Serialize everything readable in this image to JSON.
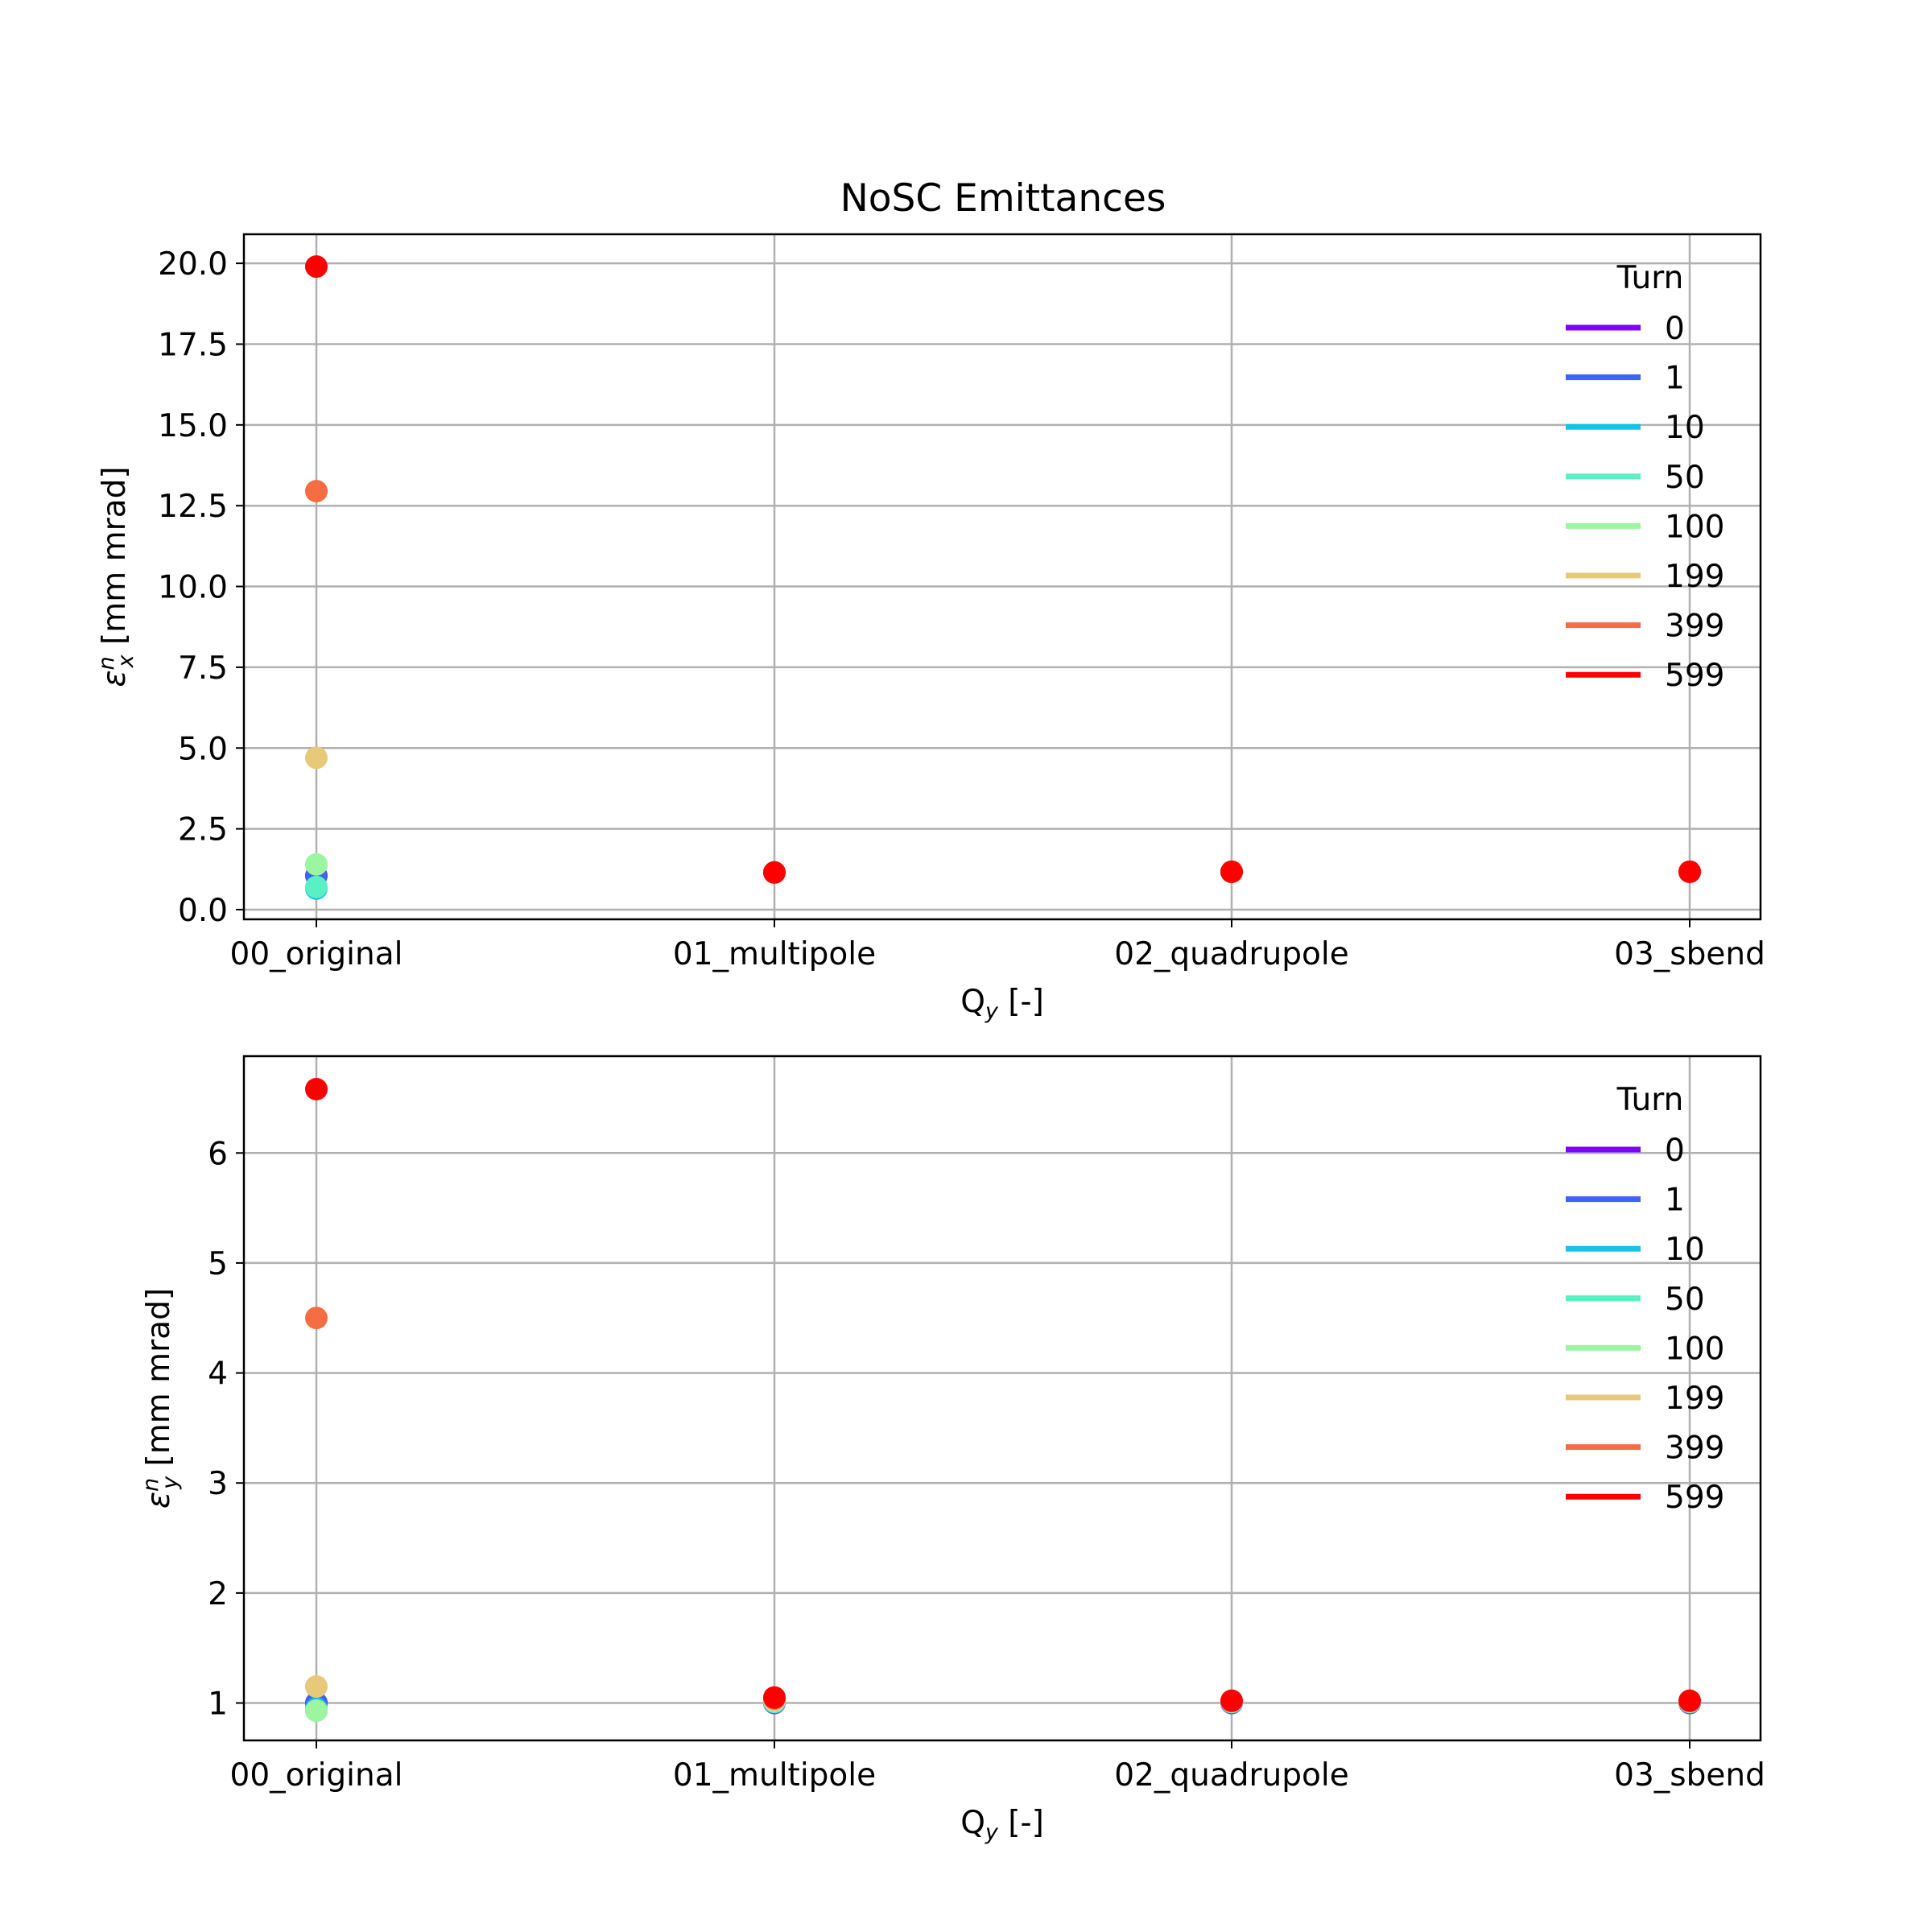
{
  "figure": {
    "title": "NoSC Emittances",
    "background": "#ffffff"
  },
  "chart_data": [
    {
      "type": "scatter",
      "title": "NoSC Emittances",
      "xlabel": {
        "main": "Q",
        "sub": "y",
        "suffix": " [-]"
      },
      "ylabel": {
        "symbol": "ε",
        "sup": "n",
        "sub": "x",
        "suffix": " [mm mrad]"
      },
      "categories": [
        "00_original",
        "01_multipole",
        "02_quadrupole",
        "03_sbend"
      ],
      "ylim": [
        -0.3,
        20.9
      ],
      "yticks": [
        0.0,
        2.5,
        5.0,
        7.5,
        10.0,
        12.5,
        15.0,
        17.5,
        20.0
      ],
      "ytick_labels": [
        "0.0",
        "2.5",
        "5.0",
        "7.5",
        "10.0",
        "12.5",
        "15.0",
        "17.5",
        "20.0"
      ],
      "grid": true,
      "legend": {
        "title": "Turn",
        "position": "top-right"
      },
      "series": [
        {
          "name": "0",
          "color": "#8000ff",
          "values": [
            1.05,
            1.15,
            1.17,
            1.17
          ]
        },
        {
          "name": "1",
          "color": "#3f62f8",
          "values": [
            1.05,
            1.15,
            1.17,
            1.17
          ]
        },
        {
          "name": "10",
          "color": "#19c1e4",
          "values": [
            0.65,
            1.15,
            1.17,
            1.17
          ]
        },
        {
          "name": "50",
          "color": "#59f0c4",
          "values": [
            0.7,
            1.15,
            1.17,
            1.17
          ]
        },
        {
          "name": "100",
          "color": "#9cf5a0",
          "values": [
            1.4,
            1.15,
            1.17,
            1.17
          ]
        },
        {
          "name": "199",
          "color": "#e8c97a",
          "values": [
            4.7,
            1.15,
            1.17,
            1.17
          ]
        },
        {
          "name": "399",
          "color": "#f46d43",
          "values": [
            12.95,
            1.15,
            1.17,
            1.17
          ]
        },
        {
          "name": "599",
          "color": "#ff0000",
          "values": [
            19.9,
            1.15,
            1.17,
            1.17
          ]
        }
      ]
    },
    {
      "type": "scatter",
      "title": "",
      "xlabel": {
        "main": "Q",
        "sub": "y",
        "suffix": " [-]"
      },
      "ylabel": {
        "symbol": "ε",
        "sup": "n",
        "sub": "y",
        "suffix": " [mm mrad]"
      },
      "categories": [
        "00_original",
        "01_multipole",
        "02_quadrupole",
        "03_sbend"
      ],
      "ylim": [
        0.66,
        6.88
      ],
      "yticks": [
        1,
        2,
        3,
        4,
        5,
        6
      ],
      "ytick_labels": [
        "1",
        "2",
        "3",
        "4",
        "5",
        "6"
      ],
      "grid": true,
      "legend": {
        "title": "Turn",
        "position": "top-right"
      },
      "series": [
        {
          "name": "0",
          "color": "#8000ff",
          "values": [
            1.0,
            1.0,
            1.0,
            1.0
          ]
        },
        {
          "name": "1",
          "color": "#3f62f8",
          "values": [
            1.0,
            1.0,
            1.0,
            1.0
          ]
        },
        {
          "name": "10",
          "color": "#19c1e4",
          "values": [
            0.95,
            1.01,
            1.01,
            1.01
          ]
        },
        {
          "name": "50",
          "color": "#59f0c4",
          "values": [
            0.93,
            1.01,
            1.01,
            1.01
          ]
        },
        {
          "name": "100",
          "color": "#9cf5a0",
          "values": [
            0.93,
            1.02,
            1.01,
            1.01
          ]
        },
        {
          "name": "199",
          "color": "#e8c97a",
          "values": [
            1.15,
            1.03,
            1.02,
            1.02
          ]
        },
        {
          "name": "399",
          "color": "#f46d43",
          "values": [
            4.5,
            1.04,
            1.02,
            1.02
          ]
        },
        {
          "name": "599",
          "color": "#ff0000",
          "values": [
            6.58,
            1.05,
            1.02,
            1.02
          ]
        }
      ]
    }
  ]
}
